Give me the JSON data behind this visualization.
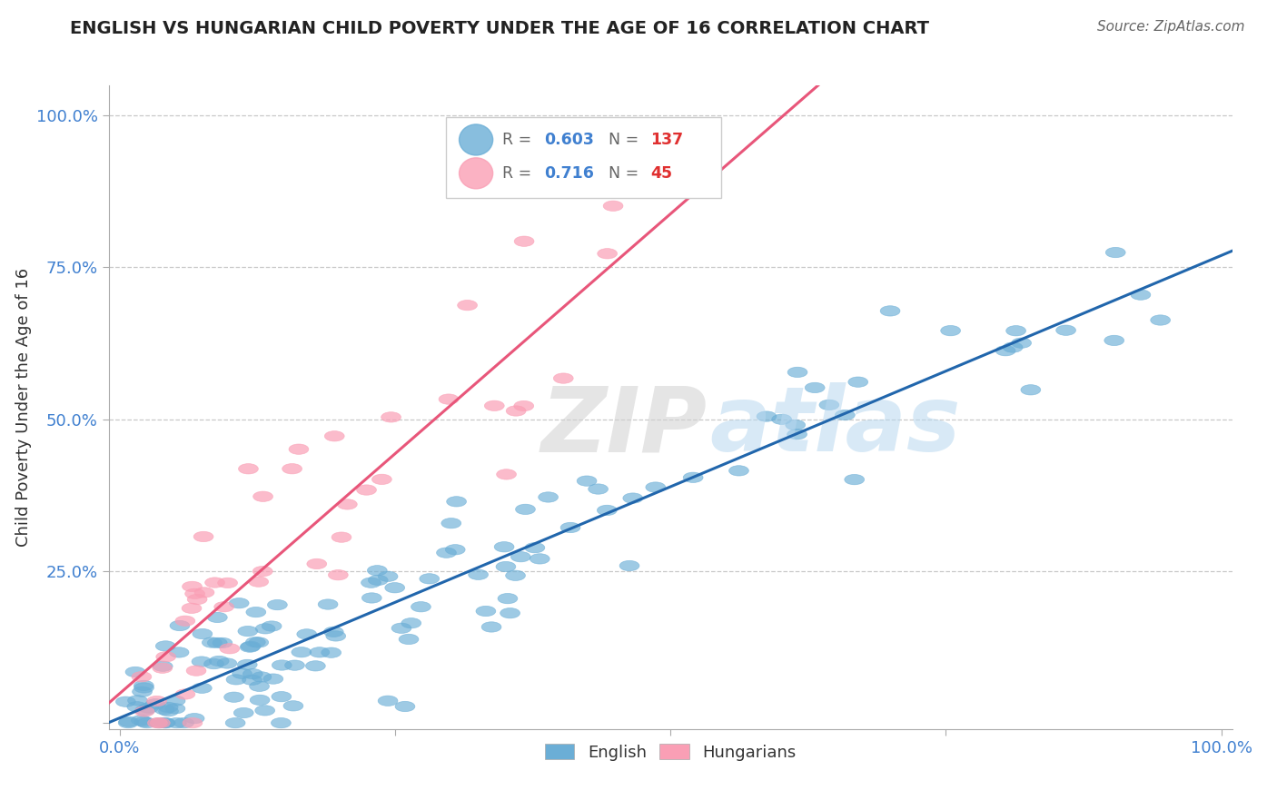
{
  "title": "ENGLISH VS HUNGARIAN CHILD POVERTY UNDER THE AGE OF 16 CORRELATION CHART",
  "source": "Source: ZipAtlas.com",
  "ylabel": "Child Poverty Under the Age of 16",
  "english_color": "#6baed6",
  "hungarian_color": "#fa9fb5",
  "english_line_color": "#2166ac",
  "hungarian_line_color": "#e8567a",
  "english_R": 0.603,
  "english_N": 137,
  "hungarian_R": 0.716,
  "hungarian_N": 45,
  "background_color": "#ffffff",
  "grid_color": "#c8c8c8",
  "title_color": "#222222",
  "legend_R_color": "#4080d0",
  "legend_N_color": "#e03030",
  "axis_tick_color": "#4080d0",
  "watermark_zip_color": "#d8d8d8",
  "watermark_atlas_color": "#b8d8f0"
}
